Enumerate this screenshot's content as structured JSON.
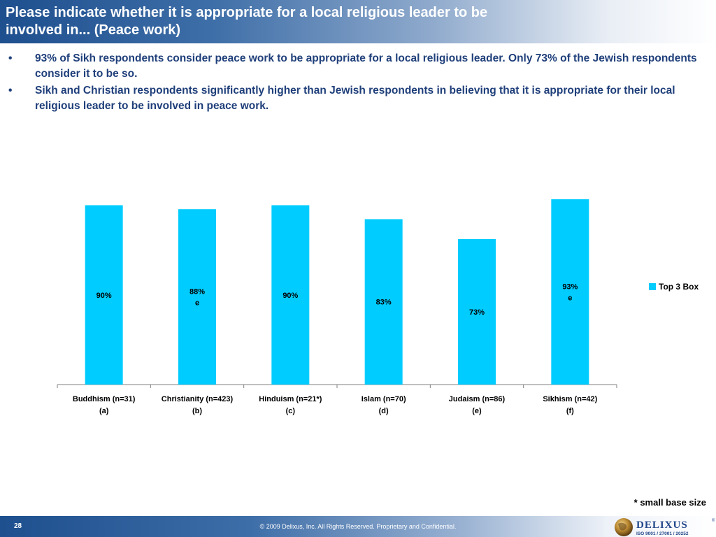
{
  "title": "Please indicate whether it is appropriate for a local religious leader to be involved in... (Peace work)",
  "bullets": [
    "93% of Sikh respondents consider peace work to be appropriate for a local religious leader. Only 73% of the Jewish respondents consider it to be so.",
    "Sikh and Christian respondents significantly higher than Jewish respondents in believing that it is appropriate for their local religious leader to be involved in peace work."
  ],
  "chart_data": {
    "type": "bar",
    "categories": [
      "Buddhism (n=31)",
      "Christianity (n=423)",
      "Hinduism (n=21*)",
      "Islam (n=70)",
      "Judaism (n=86)",
      "Sikhism (n=42)"
    ],
    "category_codes": [
      "(a)",
      "(b)",
      "(c)",
      "(d)",
      "(e)",
      "(f)"
    ],
    "series": [
      {
        "name": "Top 3 Box",
        "values": [
          90,
          88,
          90,
          83,
          73,
          93
        ],
        "labels": [
          "90%",
          "88%",
          "90%",
          "83%",
          "73%",
          "93%"
        ],
        "sig_letters": [
          "",
          "e",
          "",
          "",
          "",
          "e"
        ]
      }
    ],
    "ylim": [
      0,
      100
    ],
    "grid": false,
    "legend_position": "right",
    "bar_color": "#00ccff"
  },
  "footnote": "* small base size",
  "footer": {
    "page_number": "28",
    "copyright": "© 2009 Delixus, Inc. All Rights Reserved. Proprietary and Confidential."
  },
  "logo": {
    "name": "DELIXUS",
    "tagline": "ISO 9001 / 27001 / 20252",
    "registered": "®"
  }
}
